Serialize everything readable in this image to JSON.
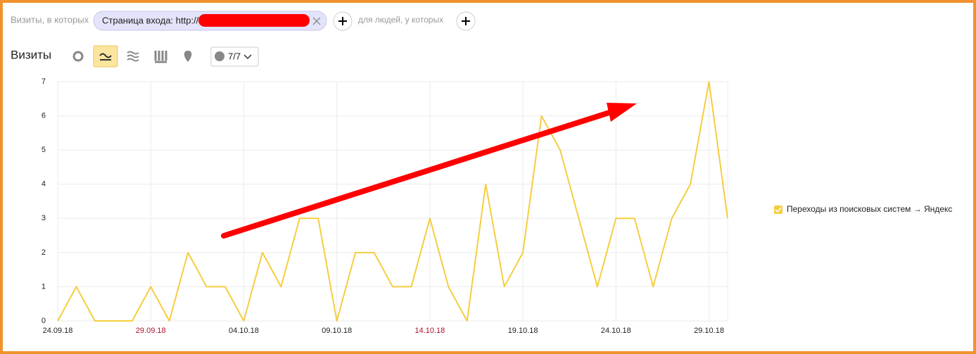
{
  "filter": {
    "prefix": "Визиты, в которых",
    "chip": "Страница входа: http://",
    "suffix": "для людей, у которых"
  },
  "section_title": "Визиты",
  "dropdown": "7/7",
  "chart_data": {
    "type": "line",
    "categories": [
      "24.09.18",
      null,
      null,
      null,
      null,
      "29.09.18",
      null,
      null,
      null,
      null,
      "04.10.18",
      null,
      null,
      null,
      null,
      "09.10.18",
      null,
      null,
      null,
      null,
      "14.10.18",
      null,
      null,
      null,
      null,
      "19.10.18",
      null,
      null,
      null,
      null,
      "24.10.18",
      null,
      null,
      null,
      null,
      "29.10.18",
      null
    ],
    "series": [
      {
        "name": "Переходы из поисковых систем → Яндекс",
        "color": "#f6cd3f",
        "values": [
          0,
          1,
          0,
          0,
          0,
          1,
          0,
          2,
          1,
          1,
          0,
          2,
          1,
          3,
          3,
          0,
          2,
          2,
          1,
          1,
          3,
          1,
          0,
          4,
          1,
          2,
          6,
          5,
          3,
          1,
          3,
          3,
          1,
          3,
          4,
          7,
          3
        ]
      }
    ],
    "ylim": [
      0,
      7
    ],
    "yticks": [
      0,
      1,
      2,
      3,
      4,
      5,
      6,
      7
    ],
    "grid": true
  }
}
